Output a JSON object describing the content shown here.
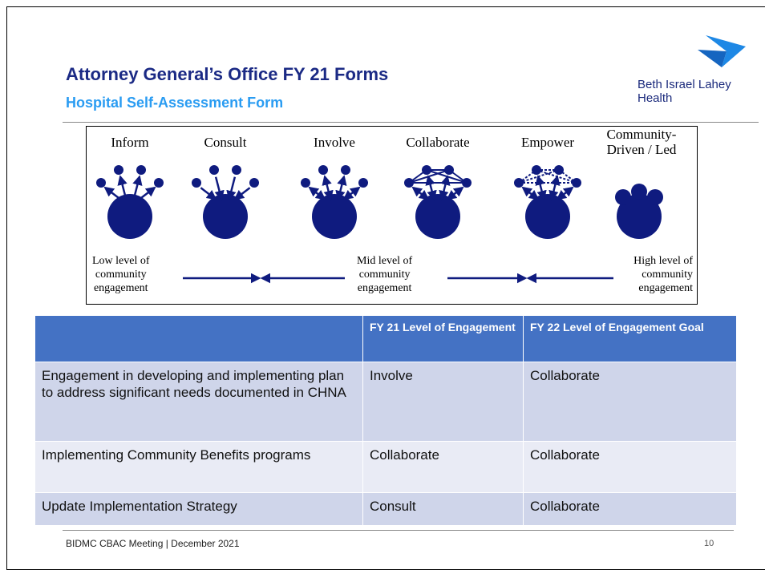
{
  "header": {
    "title": "Attorney General’s Office FY 21 Forms",
    "subtitle": "Hospital Self-Assessment Form",
    "logo": "Beth Israel Lahey Health"
  },
  "diagram": {
    "stages": [
      "Inform",
      "Consult",
      "Involve",
      "Collaborate",
      "Empower",
      "Community-\nDriven / Led"
    ],
    "levels": [
      "Low level of\ncommunity\nengagement",
      "Mid level of\ncommunity\nengagement",
      "High level of\ncommunity\nengagement"
    ]
  },
  "table": {
    "header": [
      "",
      "FY 21 Level of Engagement",
      "FY 22 Level of Engagement Goal"
    ],
    "rows": [
      [
        "Engagement in developing and implementing plan to address significant needs documented in CHNA",
        "Involve",
        "Collaborate"
      ],
      [
        "Implementing Community Benefits programs",
        "Collaborate",
        "Collaborate"
      ],
      [
        "Update Implementation Strategy",
        "Consult",
        "Collaborate"
      ]
    ]
  },
  "footer": {
    "text": "BIDMC CBAC Meeting | December 2021",
    "page": "10"
  }
}
